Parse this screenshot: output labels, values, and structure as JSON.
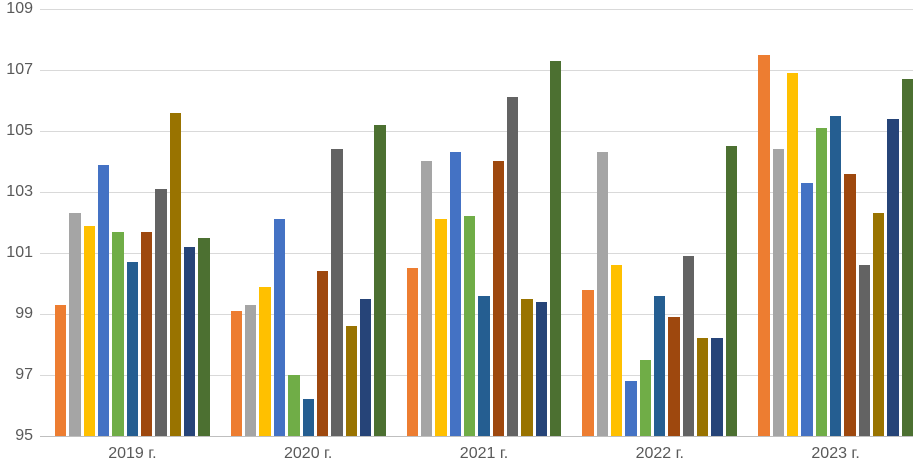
{
  "chart_data": {
    "type": "bar",
    "title": "",
    "xlabel": "",
    "ylabel": "",
    "grid": true,
    "legend": "none",
    "categories": [
      "2019 г.",
      "2020 г.",
      "2021 г.",
      "2022 г.",
      "2023 г."
    ],
    "y_axis": {
      "min": 95,
      "max": 109,
      "step": 2,
      "tick_labels_top_to_bottom": [
        "109",
        "107",
        "105",
        "103",
        "101",
        "99",
        "97",
        "95"
      ]
    },
    "series": [
      {
        "name": "orange",
        "color": "#ED7D31",
        "values": [
          99.3,
          99.1,
          100.5,
          99.8,
          107.5
        ]
      },
      {
        "name": "gray",
        "color": "#A5A5A5",
        "values": [
          102.3,
          99.3,
          104.0,
          104.3,
          104.4
        ]
      },
      {
        "name": "gold",
        "color": "#FFC000",
        "values": [
          101.9,
          99.9,
          102.1,
          100.6,
          106.9
        ]
      },
      {
        "name": "blue",
        "color": "#4472C4",
        "values": [
          103.9,
          102.1,
          104.3,
          96.8,
          103.3
        ]
      },
      {
        "name": "green",
        "color": "#70AD47",
        "values": [
          101.7,
          97.0,
          102.2,
          97.5,
          105.1
        ]
      },
      {
        "name": "steel-blue",
        "color": "#255E91",
        "values": [
          100.7,
          96.2,
          99.6,
          99.6,
          105.5
        ]
      },
      {
        "name": "dark-orange",
        "color": "#9E480E",
        "values": [
          101.7,
          100.4,
          104.0,
          98.9,
          103.6
        ]
      },
      {
        "name": "dark-gray",
        "color": "#636363",
        "values": [
          103.1,
          104.4,
          106.1,
          100.9,
          100.6
        ]
      },
      {
        "name": "dark-gold",
        "color": "#997300",
        "values": [
          105.6,
          98.6,
          99.5,
          98.2,
          102.3
        ]
      },
      {
        "name": "navy",
        "color": "#264478",
        "values": [
          101.2,
          99.5,
          99.4,
          98.2,
          105.4
        ]
      },
      {
        "name": "dark-green",
        "color": "#4C7031",
        "values": [
          101.5,
          105.2,
          107.3,
          104.5,
          106.7
        ]
      }
    ],
    "colors": {
      "gridline": "#D9D9D9",
      "axis_line": "#BFBFBF",
      "tick_text": "#595959",
      "background": "#FFFFFF"
    }
  }
}
